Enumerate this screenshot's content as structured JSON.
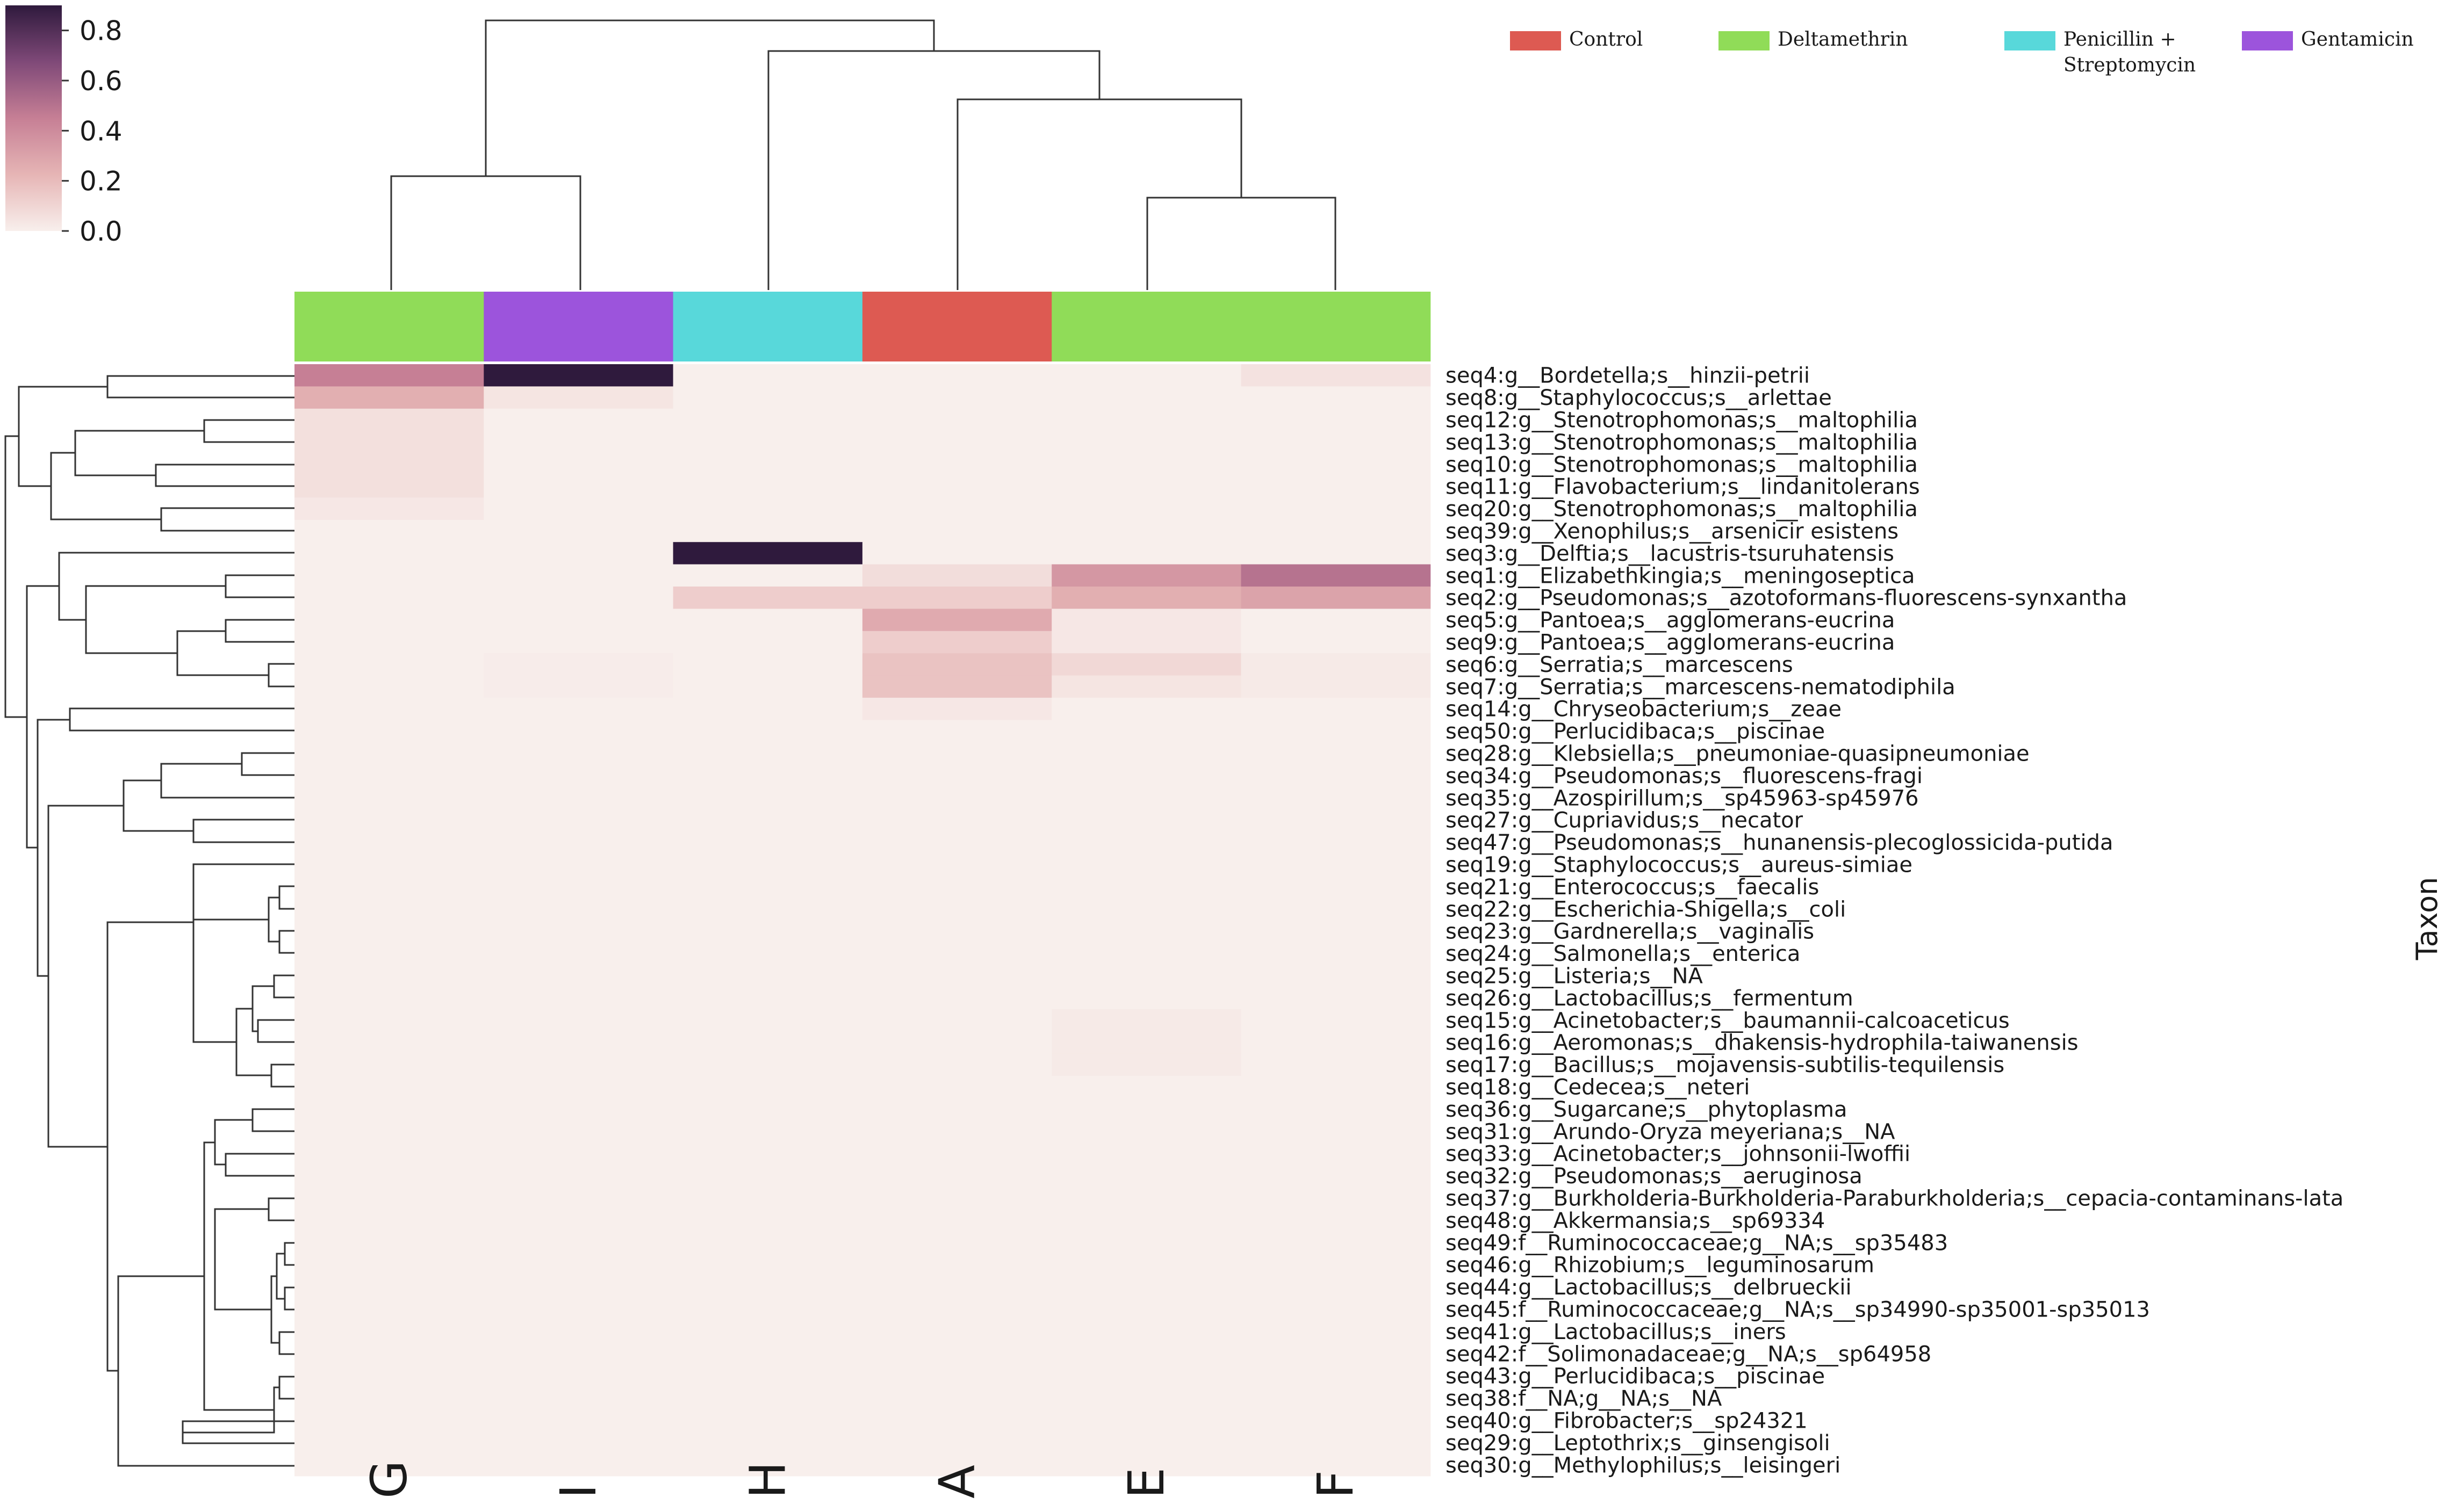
{
  "chart_data": {
    "type": "heatmap",
    "title": "",
    "columns": [
      "G",
      "I",
      "H",
      "A",
      "E",
      "F"
    ],
    "column_groups": [
      "Deltamethrin",
      "Gentamicin",
      "Penicillin + Streptomycin",
      "Control",
      "Deltamethrin",
      "Deltamethrin"
    ],
    "ylabel": "Taxon",
    "colorbar": {
      "min": 0.0,
      "max": 0.9,
      "ticks": [
        "0.8",
        "0.6",
        "0.4",
        "0.2",
        "0.0"
      ],
      "tick_values": [
        0.8,
        0.6,
        0.4,
        0.2,
        0.0
      ]
    },
    "legend": {
      "position": "top-right",
      "items": [
        {
          "line1": "Control",
          "line2": "",
          "color": "#dd5a52"
        },
        {
          "line1": "Deltamethrin",
          "line2": "",
          "color": "#90dc58"
        },
        {
          "line1": "Penicillin +",
          "line2": "Streptomycin",
          "color": "#58d8da"
        },
        {
          "line1": "Gentamicin",
          "line2": "",
          "color": "#9c54dc"
        }
      ]
    },
    "rows": [
      {
        "label": "seq4:g__Bordetella;s__hinzii-petrii",
        "values": [
          0.45,
          0.92,
          0.0,
          0.0,
          0.0,
          0.05
        ]
      },
      {
        "label": "seq8:g__Staphylococcus;s__arlettae",
        "values": [
          0.25,
          0.04,
          0.0,
          0.0,
          0.0,
          0.0
        ]
      },
      {
        "label": "seq12:g__Stenotrophomonas;s__maltophilia",
        "values": [
          0.06,
          0.0,
          0.0,
          0.0,
          0.0,
          0.0
        ]
      },
      {
        "label": "seq13:g__Stenotrophomonas;s__maltophilia",
        "values": [
          0.06,
          0.0,
          0.0,
          0.0,
          0.0,
          0.0
        ]
      },
      {
        "label": "seq10:g__Stenotrophomonas;s__maltophilia",
        "values": [
          0.06,
          0.0,
          0.0,
          0.0,
          0.0,
          0.0
        ]
      },
      {
        "label": "seq11:g__Flavobacterium;s__lindanitolerans",
        "values": [
          0.06,
          0.0,
          0.0,
          0.0,
          0.0,
          0.0
        ]
      },
      {
        "label": "seq20:g__Stenotrophomonas;s__maltophilia",
        "values": [
          0.03,
          0.0,
          0.0,
          0.0,
          0.0,
          0.0
        ]
      },
      {
        "label": "seq39:g__Xenophilus;s__arsenicir esistens",
        "values": [
          0.0,
          0.0,
          0.0,
          0.0,
          0.0,
          0.0
        ]
      },
      {
        "label": "seq3:g__Delftia;s__lacustris-tsuruhatensis",
        "values": [
          0.0,
          0.0,
          0.9,
          0.0,
          0.0,
          0.0
        ]
      },
      {
        "label": "seq1:g__Elizabethkingia;s__meningoseptica",
        "values": [
          0.0,
          0.0,
          0.0,
          0.07,
          0.35,
          0.5
        ]
      },
      {
        "label": "seq2:g__Pseudomonas;s__azotoformans-fluorescens-synxantha",
        "values": [
          0.0,
          0.0,
          0.13,
          0.13,
          0.25,
          0.3
        ]
      },
      {
        "label": "seq5:g__Pantoea;s__agglomerans-eucrina",
        "values": [
          0.0,
          0.0,
          0.0,
          0.27,
          0.03,
          0.0
        ]
      },
      {
        "label": "seq9:g__Pantoea;s__agglomerans-eucrina",
        "values": [
          0.0,
          0.0,
          0.0,
          0.13,
          0.03,
          0.0
        ]
      },
      {
        "label": "seq6:g__Serratia;s__marcescens",
        "values": [
          0.0,
          0.01,
          0.0,
          0.17,
          0.09,
          0.02
        ]
      },
      {
        "label": "seq7:g__Serratia;s__marcescens-nematodiphila",
        "values": [
          0.0,
          0.01,
          0.0,
          0.17,
          0.04,
          0.02
        ]
      },
      {
        "label": "seq14:g__Chryseobacterium;s__zeae",
        "values": [
          0.0,
          0.0,
          0.0,
          0.03,
          0.0,
          0.0
        ]
      },
      {
        "label": "seq50:g__Perlucidibaca;s__piscinae",
        "values": [
          0.0,
          0.0,
          0.0,
          0.0,
          0.0,
          0.0
        ]
      },
      {
        "label": "seq28:g__Klebsiella;s__pneumoniae-quasipneumoniae",
        "values": [
          0.0,
          0.0,
          0.0,
          0.0,
          0.0,
          0.0
        ]
      },
      {
        "label": "seq34:g__Pseudomonas;s__fluorescens-fragi",
        "values": [
          0.0,
          0.0,
          0.0,
          0.0,
          0.0,
          0.0
        ]
      },
      {
        "label": "seq35:g__Azospirillum;s__sp45963-sp45976",
        "values": [
          0.0,
          0.0,
          0.0,
          0.0,
          0.0,
          0.0
        ]
      },
      {
        "label": "seq27:g__Cupriavidus;s__necator",
        "values": [
          0.0,
          0.0,
          0.0,
          0.0,
          0.0,
          0.0
        ]
      },
      {
        "label": "seq47:g__Pseudomonas;s__hunanensis-plecoglossicida-putida",
        "values": [
          0.0,
          0.0,
          0.0,
          0.0,
          0.0,
          0.0
        ]
      },
      {
        "label": "seq19:g__Staphylococcus;s__aureus-simiae",
        "values": [
          0.0,
          0.0,
          0.0,
          0.0,
          0.0,
          0.0
        ]
      },
      {
        "label": "seq21:g__Enterococcus;s__faecalis",
        "values": [
          0.0,
          0.0,
          0.0,
          0.0,
          0.0,
          0.0
        ]
      },
      {
        "label": "seq22:g__Escherichia-Shigella;s__coli",
        "values": [
          0.0,
          0.0,
          0.0,
          0.0,
          0.0,
          0.0
        ]
      },
      {
        "label": "seq23:g__Gardnerella;s__vaginalis",
        "values": [
          0.0,
          0.0,
          0.0,
          0.0,
          0.0,
          0.0
        ]
      },
      {
        "label": "seq24:g__Salmonella;s__enterica",
        "values": [
          0.0,
          0.0,
          0.0,
          0.0,
          0.0,
          0.0
        ]
      },
      {
        "label": "seq25:g__Listeria;s__NA",
        "values": [
          0.0,
          0.0,
          0.0,
          0.0,
          0.0,
          0.0
        ]
      },
      {
        "label": "seq26:g__Lactobacillus;s__fermentum",
        "values": [
          0.0,
          0.0,
          0.0,
          0.0,
          0.0,
          0.0
        ]
      },
      {
        "label": "seq15:g__Acinetobacter;s__baumannii-calcoaceticus",
        "values": [
          0.0,
          0.0,
          0.0,
          0.0,
          0.02,
          0.0
        ]
      },
      {
        "label": "seq16:g__Aeromonas;s__dhakensis-hydrophila-taiwanensis",
        "values": [
          0.0,
          0.0,
          0.0,
          0.0,
          0.02,
          0.0
        ]
      },
      {
        "label": "seq17:g__Bacillus;s__mojavensis-subtilis-tequilensis",
        "values": [
          0.0,
          0.0,
          0.0,
          0.0,
          0.02,
          0.0
        ]
      },
      {
        "label": "seq18:g__Cedecea;s__neteri",
        "values": [
          0.0,
          0.0,
          0.0,
          0.0,
          0.0,
          0.0
        ]
      },
      {
        "label": "seq36:g__Sugarcane;s__phytoplasma",
        "values": [
          0.0,
          0.0,
          0.0,
          0.0,
          0.0,
          0.0
        ]
      },
      {
        "label": "seq31:g__Arundo-Oryza meyeriana;s__NA",
        "values": [
          0.0,
          0.0,
          0.0,
          0.0,
          0.0,
          0.0
        ]
      },
      {
        "label": "seq33:g__Acinetobacter;s__johnsonii-lwoffii",
        "values": [
          0.0,
          0.0,
          0.0,
          0.0,
          0.0,
          0.0
        ]
      },
      {
        "label": "seq32:g__Pseudomonas;s__aeruginosa",
        "values": [
          0.0,
          0.0,
          0.0,
          0.0,
          0.0,
          0.0
        ]
      },
      {
        "label": "seq37:g__Burkholderia-Burkholderia-Paraburkholderia;s__cepacia-contaminans-lata",
        "values": [
          0.0,
          0.0,
          0.0,
          0.0,
          0.0,
          0.0
        ]
      },
      {
        "label": "seq48:g__Akkermansia;s__sp69334",
        "values": [
          0.0,
          0.0,
          0.0,
          0.0,
          0.0,
          0.0
        ]
      },
      {
        "label": "seq49:f__Ruminococcaceae;g__NA;s__sp35483",
        "values": [
          0.0,
          0.0,
          0.0,
          0.0,
          0.0,
          0.0
        ]
      },
      {
        "label": "seq46:g__Rhizobium;s__leguminosarum",
        "values": [
          0.0,
          0.0,
          0.0,
          0.0,
          0.0,
          0.0
        ]
      },
      {
        "label": "seq44:g__Lactobacillus;s__delbrueckii",
        "values": [
          0.0,
          0.0,
          0.0,
          0.0,
          0.0,
          0.0
        ]
      },
      {
        "label": "seq45:f__Ruminococcaceae;g__NA;s__sp34990-sp35001-sp35013",
        "values": [
          0.0,
          0.0,
          0.0,
          0.0,
          0.0,
          0.0
        ]
      },
      {
        "label": "seq41:g__Lactobacillus;s__iners",
        "values": [
          0.0,
          0.0,
          0.0,
          0.0,
          0.0,
          0.0
        ]
      },
      {
        "label": "seq42:f__Solimonadaceae;g__NA;s__sp64958",
        "values": [
          0.0,
          0.0,
          0.0,
          0.0,
          0.0,
          0.0
        ]
      },
      {
        "label": "seq43:g__Perlucidibaca;s__piscinae",
        "values": [
          0.0,
          0.0,
          0.0,
          0.0,
          0.0,
          0.0
        ]
      },
      {
        "label": "seq38:f__NA;g__NA;s__NA",
        "values": [
          0.0,
          0.0,
          0.0,
          0.0,
          0.0,
          0.0
        ]
      },
      {
        "label": "seq40:g__Fibrobacter;s__sp24321",
        "values": [
          0.0,
          0.0,
          0.0,
          0.0,
          0.0,
          0.0
        ]
      },
      {
        "label": "seq29:g__Leptothrix;s__ginsengisoli",
        "values": [
          0.0,
          0.0,
          0.0,
          0.0,
          0.0,
          0.0
        ]
      },
      {
        "label": "seq30:g__Methylophilus;s__leisingeri",
        "values": [
          0.0,
          0.0,
          0.0,
          0.0,
          0.0,
          0.0
        ]
      }
    ]
  }
}
